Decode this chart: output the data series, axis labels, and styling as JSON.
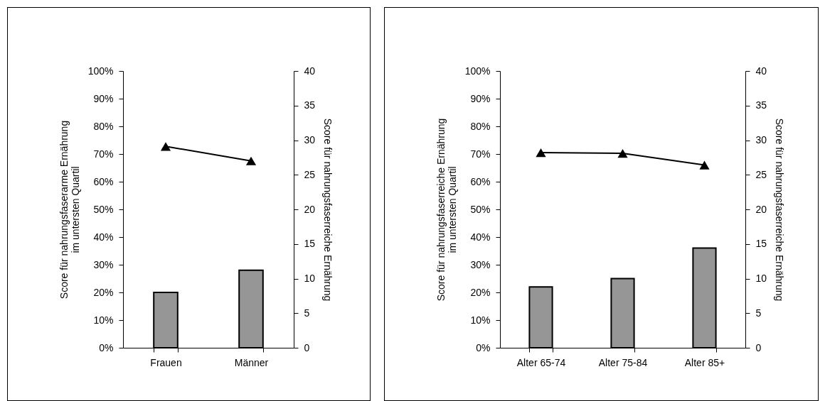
{
  "chart_data": [
    {
      "type": "bar",
      "categories": [
        "Frauen",
        "Männer"
      ],
      "ylabel": "Score für nahrungsfaserarme Ernährung\nim untersten Quartil",
      "y2label": "Score für nahrungsfaserreiche Ernährung",
      "ylim": [
        0,
        100
      ],
      "yticks": [
        {
          "value": 0,
          "label": "0%"
        },
        {
          "value": 10,
          "label": "10%"
        },
        {
          "value": 20,
          "label": "20%"
        },
        {
          "value": 30,
          "label": "30%"
        },
        {
          "value": 40,
          "label": "40%"
        },
        {
          "value": 50,
          "label": "50%"
        },
        {
          "value": 60,
          "label": "60%"
        },
        {
          "value": 70,
          "label": "70%"
        },
        {
          "value": 80,
          "label": "80%"
        },
        {
          "value": 90,
          "label": "90%"
        },
        {
          "value": 100,
          "label": "100%"
        }
      ],
      "y2lim": [
        0,
        40
      ],
      "y2ticks": [
        0,
        5,
        10,
        15,
        20,
        25,
        30,
        35,
        40
      ],
      "grid": false,
      "series": [
        {
          "color": "#969696",
          "values": [
            20,
            28
          ]
        },
        {
          "type": "line",
          "axis": "y2",
          "color": "#000000",
          "marker": "triangle",
          "values": [
            29.1,
            27.0
          ]
        }
      ]
    },
    {
      "type": "bar",
      "categories": [
        "Alter 65-74",
        "Alter 75-84",
        "Alter 85+"
      ],
      "ylabel": "Score für nahrungsfaserreiche Ernährung\nim untersten Quartil",
      "y2label": "Score für nahrungsfaserreiche Ernährung",
      "ylim": [
        0,
        100
      ],
      "yticks": [
        {
          "value": 0,
          "label": "0%"
        },
        {
          "value": 10,
          "label": "10%"
        },
        {
          "value": 20,
          "label": "20%"
        },
        {
          "value": 30,
          "label": "30%"
        },
        {
          "value": 40,
          "label": "40%"
        },
        {
          "value": 50,
          "label": "50%"
        },
        {
          "value": 60,
          "label": "60%"
        },
        {
          "value": 70,
          "label": "70%"
        },
        {
          "value": 80,
          "label": "80%"
        },
        {
          "value": 90,
          "label": "90%"
        },
        {
          "value": 100,
          "label": "100%"
        }
      ],
      "y2lim": [
        0,
        40
      ],
      "y2ticks": [
        0,
        5,
        10,
        15,
        20,
        25,
        30,
        35,
        40
      ],
      "grid": false,
      "series": [
        {
          "color": "#969696",
          "values": [
            22,
            25,
            36
          ]
        },
        {
          "type": "line",
          "axis": "y2",
          "color": "#000000",
          "marker": "triangle",
          "values": [
            28.2,
            28.1,
            26.4
          ]
        }
      ]
    }
  ]
}
